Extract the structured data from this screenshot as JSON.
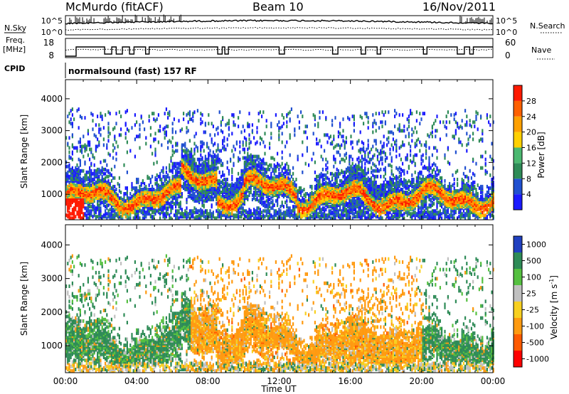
{
  "header": {
    "radar": "McMurdo (fitACF)",
    "beam": "Beam 10",
    "date": "16/Nov/2011"
  },
  "noise_panel": {
    "left_label": "N.Sky",
    "right_label": "N.Search",
    "left_ticks": [
      "10^5",
      "10^0"
    ],
    "right_ticks": [
      "10^5",
      "10^0"
    ]
  },
  "freq_panel": {
    "left_label_1": "Freq.",
    "left_label_2": "[MHz]",
    "left_ticks": [
      "18",
      "8"
    ],
    "right_label": "Nave",
    "right_ticks": [
      "60",
      "0"
    ]
  },
  "cpid": {
    "label": "CPID",
    "text": "normalsound (fast) 157 RF"
  },
  "chart_data": [
    {
      "type": "heatmap",
      "name": "power",
      "ylabel": "Slant Range [km]",
      "yticks": [
        1000,
        2000,
        3000,
        4000
      ],
      "ylim": [
        200,
        4600
      ],
      "xlim": [
        0,
        24
      ],
      "xlabel": "",
      "colorbar": {
        "label": "Power [dB]",
        "ticks": [
          "4",
          "8",
          "12",
          "16",
          "20",
          "24",
          "28"
        ],
        "colors": [
          "#1a1aff",
          "#2050d0",
          "#2e8b57",
          "#4bb870",
          "#ffd000",
          "#ffa000",
          "#ff6000",
          "#ff1a00"
        ]
      }
    },
    {
      "type": "heatmap",
      "name": "velocity",
      "ylabel": "Slant Range [km]",
      "yticks": [
        1000,
        2000,
        3000,
        4000
      ],
      "ylim": [
        200,
        4600
      ],
      "xlim": [
        0,
        24
      ],
      "xlabel": "Time UT",
      "xticks": [
        "00:00",
        "04:00",
        "08:00",
        "12:00",
        "16:00",
        "20:00",
        "00:00"
      ],
      "colorbar": {
        "label": "Velocity [m s",
        "label_sup": "-1",
        "label_end": "]",
        "ticks": [
          "1000",
          "500",
          "100",
          "25",
          "-25",
          "-100",
          "-500",
          "-1000"
        ],
        "colors": [
          "#2040c0",
          "#2e8b57",
          "#55c040",
          "#c0c0c0",
          "#f8d020",
          "#ff9a10",
          "#ff5a00",
          "#ff0000"
        ]
      }
    }
  ]
}
